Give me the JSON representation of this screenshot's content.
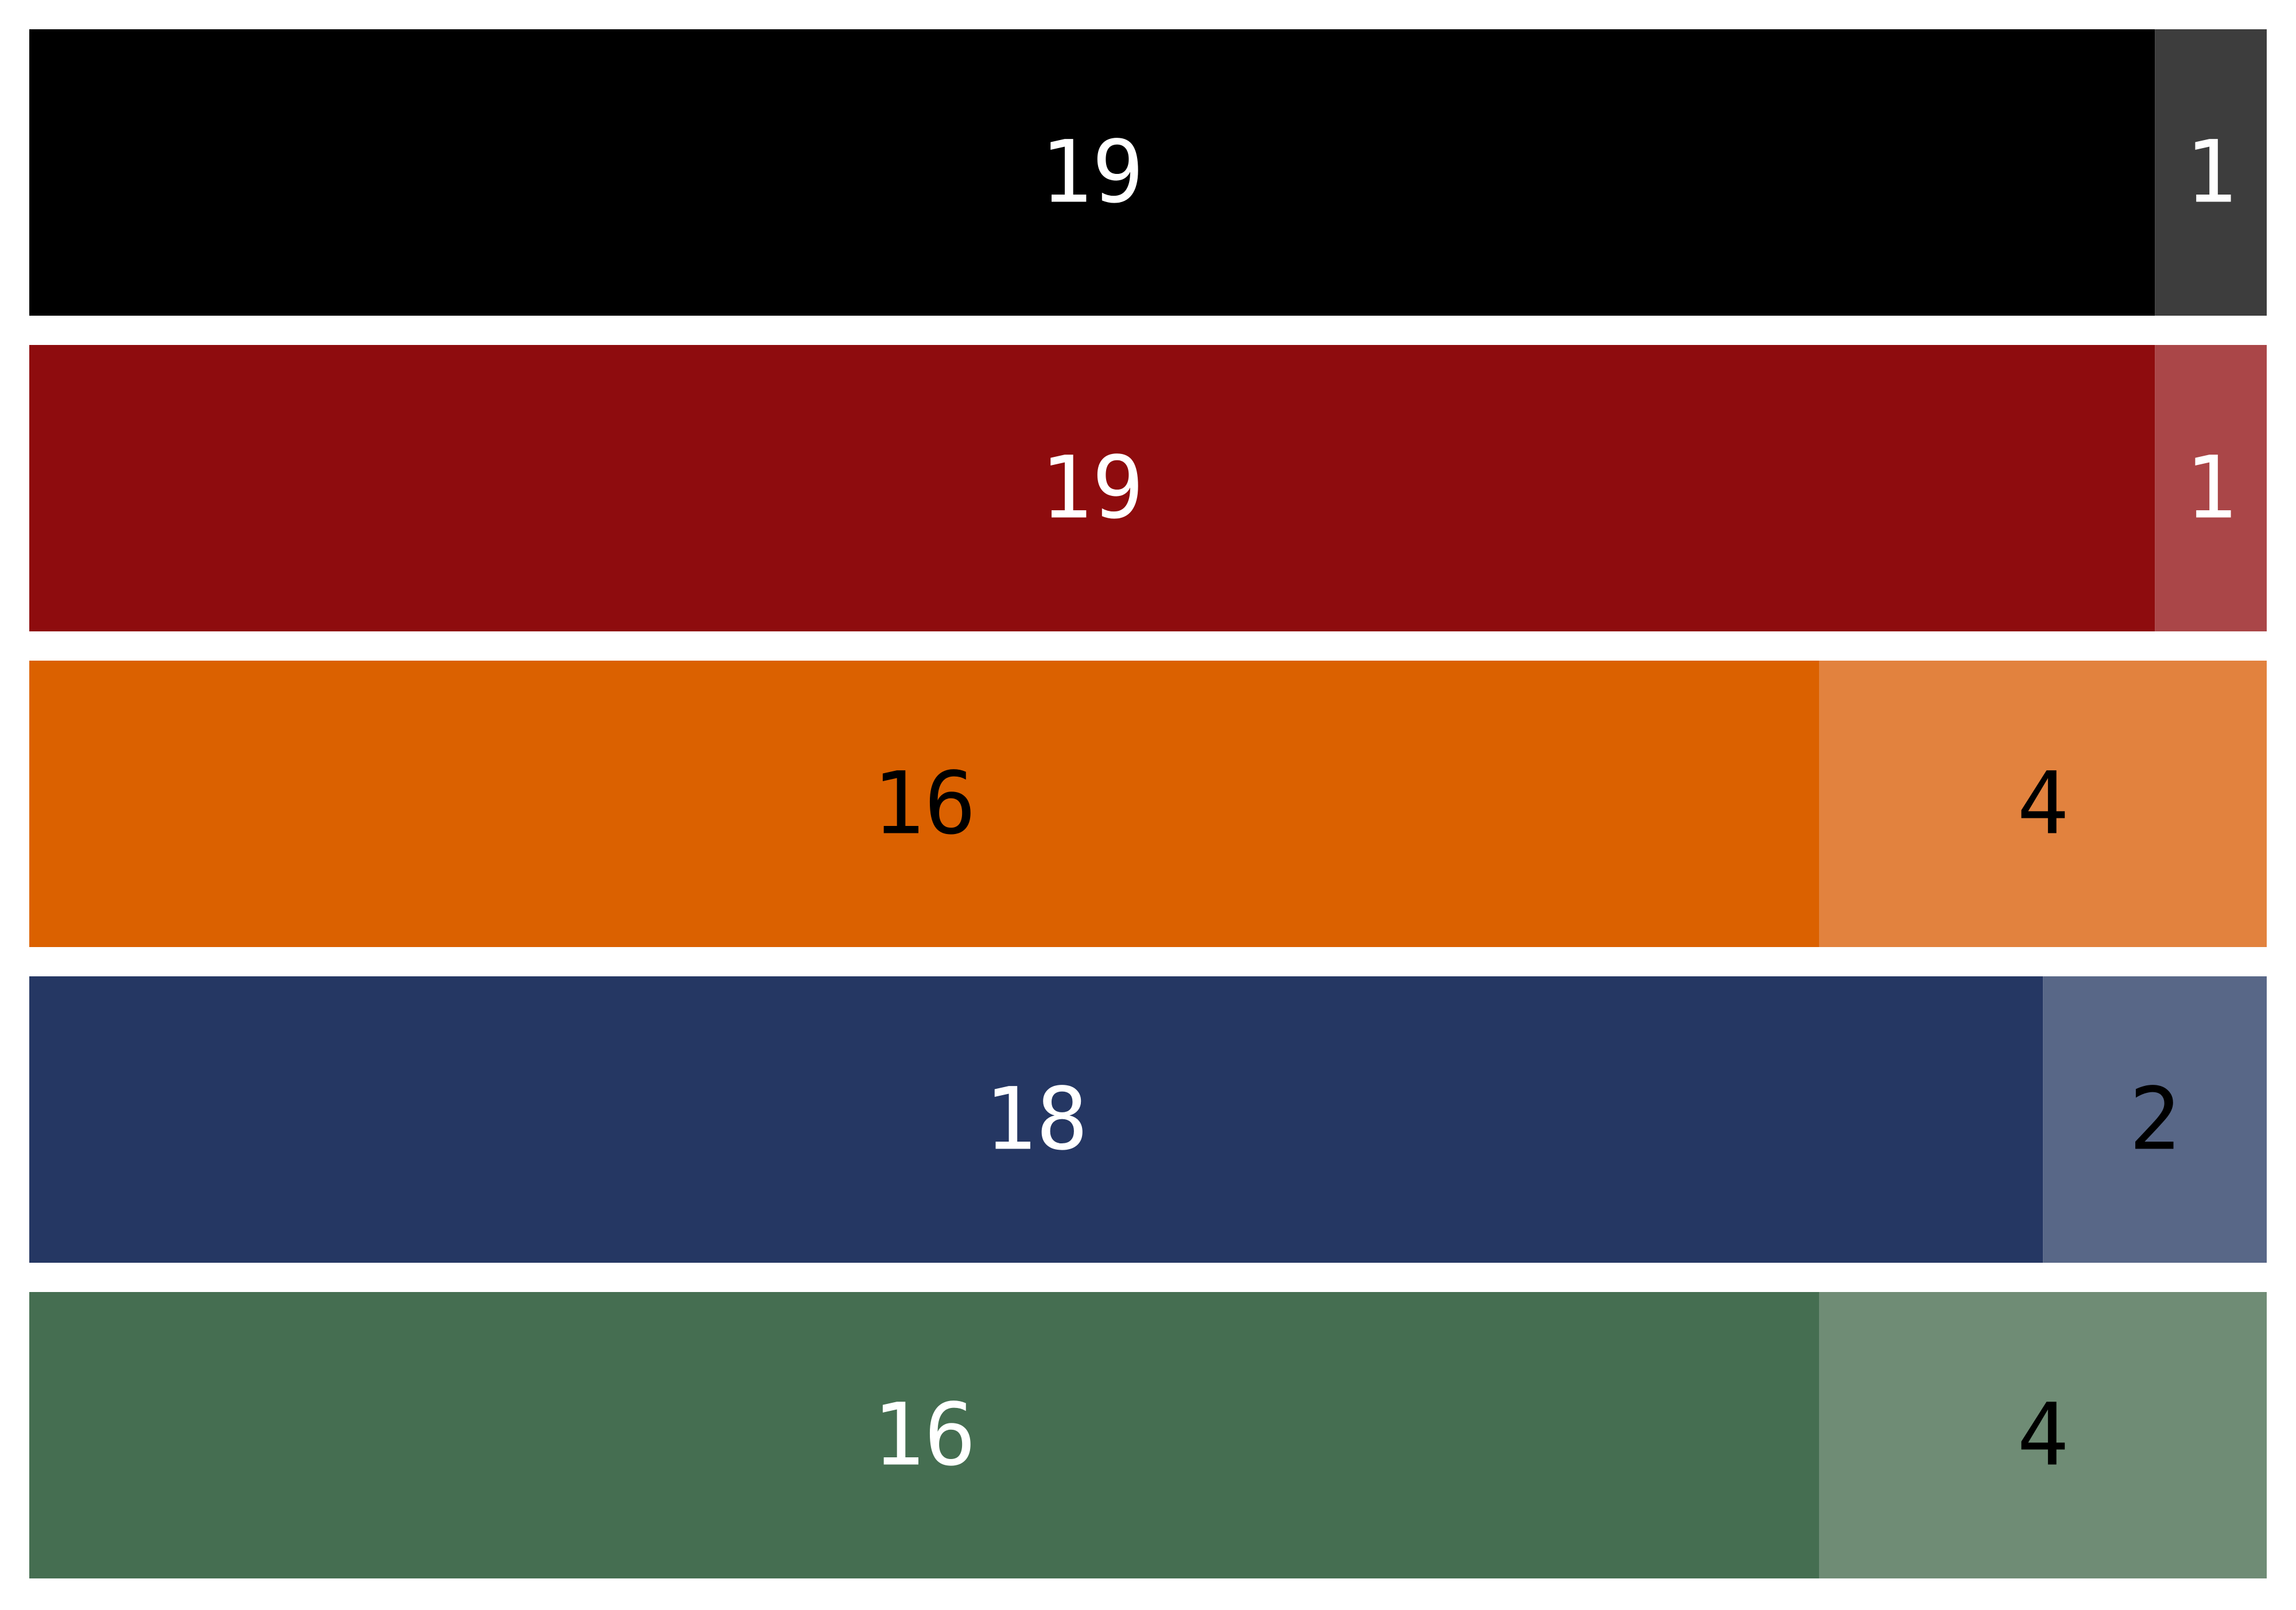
{
  "chart_data": {
    "type": "bar",
    "orientation": "horizontal",
    "stacked": true,
    "rows": [
      {
        "segments": [
          {
            "value": 19,
            "label": "19",
            "color": "#000000",
            "label_color": "#ffffff"
          },
          {
            "value": 1,
            "label": "1",
            "color": "#3d3d3d",
            "label_color": "#ffffff"
          }
        ]
      },
      {
        "segments": [
          {
            "value": 19,
            "label": "19",
            "color": "#8e0c0e",
            "label_color": "#ffffff"
          },
          {
            "value": 1,
            "label": "1",
            "color": "#aa4648",
            "label_color": "#ffffff"
          }
        ]
      },
      {
        "segments": [
          {
            "value": 16,
            "label": "16",
            "color": "#db6100",
            "label_color": "#000000"
          },
          {
            "value": 4,
            "label": "4",
            "color": "#e2823e",
            "label_color": "#000000"
          }
        ]
      },
      {
        "segments": [
          {
            "value": 18,
            "label": "18",
            "color": "#253763",
            "label_color": "#ffffff"
          },
          {
            "value": 2,
            "label": "2",
            "color": "#586787",
            "label_color": "#000000"
          }
        ]
      },
      {
        "segments": [
          {
            "value": 16,
            "label": "16",
            "color": "#456e51",
            "label_color": "#ffffff"
          },
          {
            "value": 4,
            "label": "4",
            "color": "#6f8c75",
            "label_color": "#000000"
          }
        ]
      }
    ],
    "xlim": [
      0,
      20
    ],
    "grid": false,
    "legend": "none"
  }
}
